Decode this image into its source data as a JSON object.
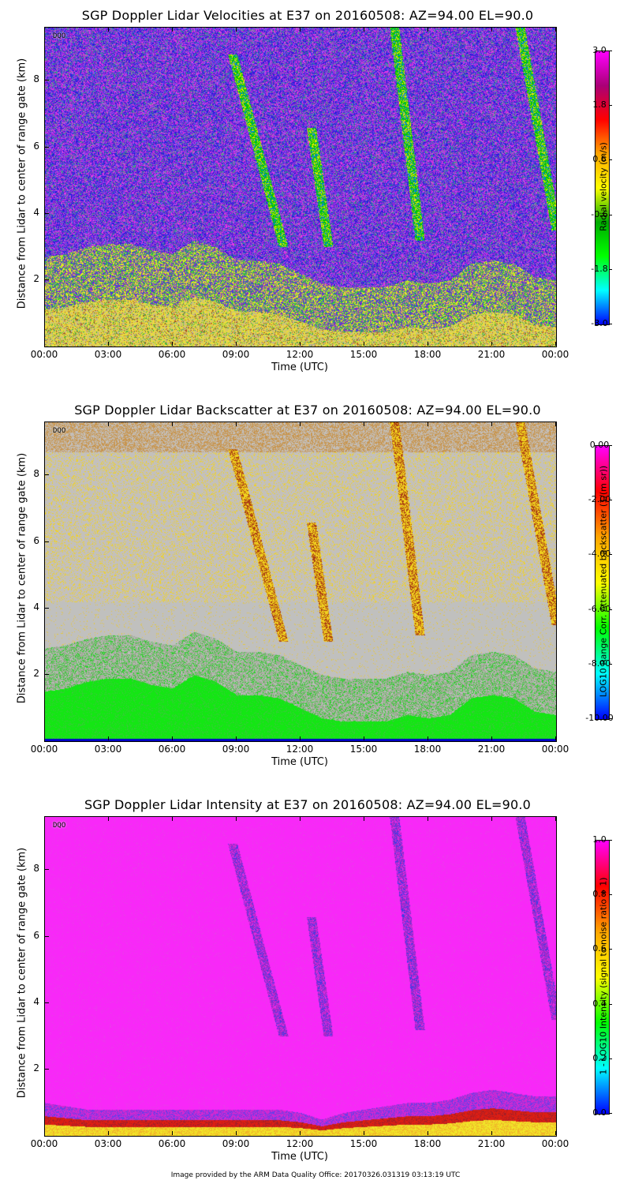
{
  "chart_data": [
    {
      "type": "heatmap",
      "title": "SGP Doppler Lidar Velocities at E37 on 20160508: AZ=94.00 EL=90.0",
      "xlabel": "Time (UTC)",
      "ylabel": "Distance from Lidar to center of range gate (km)",
      "x_ticks": [
        "00:00",
        "03:00",
        "06:00",
        "09:00",
        "12:00",
        "15:00",
        "18:00",
        "21:00",
        "00:00"
      ],
      "x_tick_hours": [
        0,
        3,
        6,
        9,
        12,
        15,
        18,
        21,
        24
      ],
      "y_ticks": [
        "2",
        "4",
        "6",
        "8"
      ],
      "y_tick_values": [
        2,
        4,
        6,
        8
      ],
      "xlim": [
        0,
        24
      ],
      "ylim": [
        0,
        9.6
      ],
      "flag_label": "DQO",
      "colorbar": {
        "label": "Radial velocity (m/s)",
        "ticks": [
          "3.0",
          "1.8",
          "0.6",
          "-0.6",
          "-1.8",
          "-3.0"
        ],
        "tick_values": [
          3.0,
          1.8,
          0.6,
          -0.6,
          -1.8,
          -3.0
        ],
        "range": [
          -3.0,
          3.0
        ],
        "colormap": [
          "#0000ff",
          "#00ffff",
          "#00ff00",
          "#00aa00",
          "#ffff00",
          "#ffa500",
          "#ff0000",
          "#aa0077",
          "#ff00ff"
        ]
      },
      "features": {
        "boundary_layer_top_km": [
          1.5,
          1.6,
          1.8,
          1.9,
          1.9,
          1.7,
          1.6,
          2.0,
          1.8,
          1.4,
          1.4,
          1.3,
          1.0,
          0.7,
          0.6,
          0.6,
          0.6,
          0.8,
          0.7,
          0.8,
          1.3,
          1.4,
          1.3,
          0.9,
          0.8
        ],
        "streaks": [
          {
            "start_hour": 8.8,
            "end_hour": 11.2,
            "top_km": 8.8,
            "bottom_km": 3.0
          },
          {
            "start_hour": 12.5,
            "end_hour": 13.3,
            "top_km": 6.6,
            "bottom_km": 3.0
          },
          {
            "start_hour": 16.4,
            "end_hour": 17.6,
            "top_km": 9.6,
            "bottom_km": 3.2
          },
          {
            "start_hour": 22.3,
            "end_hour": 24.0,
            "top_km": 9.6,
            "bottom_km": 3.5
          }
        ]
      }
    },
    {
      "type": "heatmap",
      "title": "SGP Doppler Lidar Backscatter at E37 on 20160508: AZ=94.00 EL=90.0",
      "xlabel": "Time (UTC)",
      "ylabel": "Distance from Lidar to center of range gate (km)",
      "x_ticks": [
        "00:00",
        "03:00",
        "06:00",
        "09:00",
        "12:00",
        "15:00",
        "18:00",
        "21:00",
        "00:00"
      ],
      "x_tick_hours": [
        0,
        3,
        6,
        9,
        12,
        15,
        18,
        21,
        24
      ],
      "y_ticks": [
        "2",
        "4",
        "6",
        "8"
      ],
      "y_tick_values": [
        2,
        4,
        6,
        8
      ],
      "xlim": [
        0,
        24
      ],
      "ylim": [
        0,
        9.6
      ],
      "flag_label": "DQO",
      "colorbar": {
        "label": "LOG10 Range Corr. Attenuated backscatter (1/(m sr))",
        "ticks": [
          "0.00",
          "-2.00",
          "-4.00",
          "-6.00",
          "-8.00",
          "-10.00"
        ],
        "tick_values": [
          0.0,
          -2.0,
          -4.0,
          -6.0,
          -8.0,
          -10.0
        ],
        "range": [
          -10.0,
          0.0
        ],
        "colormap": [
          "#0000ff",
          "#00ffff",
          "#00ff00",
          "#ffff00",
          "#ffa500",
          "#ff0000",
          "#ff00ff"
        ]
      },
      "features": {
        "boundary_layer_top_km": [
          1.5,
          1.6,
          1.8,
          1.9,
          1.9,
          1.7,
          1.6,
          2.0,
          1.8,
          1.4,
          1.4,
          1.3,
          1.0,
          0.7,
          0.6,
          0.6,
          0.6,
          0.8,
          0.7,
          0.8,
          1.3,
          1.4,
          1.3,
          0.9,
          0.8
        ],
        "streaks": [
          {
            "start_hour": 8.8,
            "end_hour": 11.2,
            "top_km": 8.8,
            "bottom_km": 3.0
          },
          {
            "start_hour": 12.5,
            "end_hour": 13.3,
            "top_km": 6.6,
            "bottom_km": 3.0
          },
          {
            "start_hour": 16.4,
            "end_hour": 17.6,
            "top_km": 9.6,
            "bottom_km": 3.2
          },
          {
            "start_hour": 22.3,
            "end_hour": 24.0,
            "top_km": 9.6,
            "bottom_km": 3.5
          }
        ]
      }
    },
    {
      "type": "heatmap",
      "title": "SGP Doppler Lidar Intensity at E37 on 20160508: AZ=94.00 EL=90.0",
      "xlabel": "Time (UTC)",
      "ylabel": "Distance from Lidar to center of range gate (km)",
      "x_ticks": [
        "00:00",
        "03:00",
        "06:00",
        "09:00",
        "12:00",
        "15:00",
        "18:00",
        "21:00",
        "00:00"
      ],
      "x_tick_hours": [
        0,
        3,
        6,
        9,
        12,
        15,
        18,
        21,
        24
      ],
      "y_ticks": [
        "2",
        "4",
        "6",
        "8"
      ],
      "y_tick_values": [
        2,
        4,
        6,
        8
      ],
      "xlim": [
        0,
        24
      ],
      "ylim": [
        0,
        9.6
      ],
      "flag_label": "DQO",
      "colorbar": {
        "label": "1 - LOG10 Intensity (signal to noise ratio + 1)",
        "ticks": [
          "1.0",
          "0.8",
          "0.6",
          "0.4",
          "0.2",
          "0.0"
        ],
        "tick_values": [
          1.0,
          0.8,
          0.6,
          0.4,
          0.2,
          0.0
        ],
        "range": [
          0.0,
          1.0
        ],
        "colormap": [
          "#0000ff",
          "#00ffff",
          "#00ff00",
          "#ffff00",
          "#ffa500",
          "#ff0000",
          "#ff00ff"
        ]
      },
      "features": {
        "boundary_layer_top_km": [
          1.0,
          0.9,
          0.8,
          0.8,
          0.8,
          0.8,
          0.8,
          0.8,
          0.8,
          0.8,
          0.8,
          0.8,
          0.7,
          0.5,
          0.7,
          0.8,
          0.9,
          1.0,
          1.0,
          1.1,
          1.3,
          1.4,
          1.3,
          1.2,
          1.2
        ],
        "streaks": [
          {
            "start_hour": 8.8,
            "end_hour": 11.2,
            "top_km": 8.8,
            "bottom_km": 3.0
          },
          {
            "start_hour": 12.5,
            "end_hour": 13.3,
            "top_km": 6.6,
            "bottom_km": 3.0
          },
          {
            "start_hour": 16.4,
            "end_hour": 17.6,
            "top_km": 9.6,
            "bottom_km": 3.2
          },
          {
            "start_hour": 22.3,
            "end_hour": 24.0,
            "top_km": 9.6,
            "bottom_km": 3.5
          }
        ]
      }
    }
  ],
  "footer": "Image provided by the ARM Data Quality Office: 20170326.031319 03:13:19 UTC"
}
